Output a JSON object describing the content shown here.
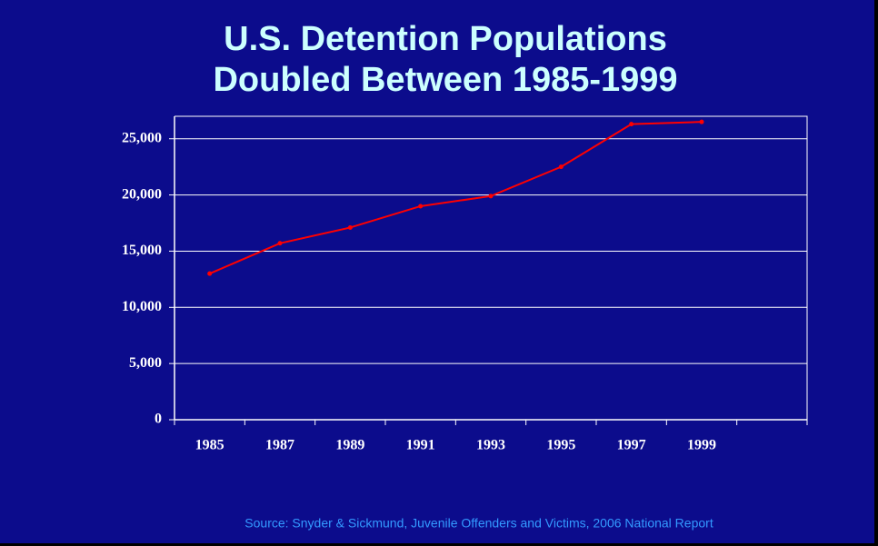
{
  "chart_data": {
    "type": "line",
    "title": [
      "U.S. Detention Populations",
      "Doubled Between 1985-1999"
    ],
    "source": "Source: Snyder & Sickmund, Juvenile Offenders and Victims, 2006 National Report",
    "categories": [
      "1985",
      "1987",
      "1989",
      "1991",
      "1993",
      "1995",
      "1997",
      "1999",
      null
    ],
    "series": [
      {
        "name": null,
        "color": "#ff0000",
        "values": [
          13000,
          15700,
          17100,
          19000,
          19900,
          22500,
          26300,
          26500,
          null
        ]
      }
    ],
    "ylim": [
      0,
      27000
    ],
    "yticks": [
      0,
      {
        "value": 5000,
        "label": "5,000"
      },
      {
        "value": 10000,
        "label": "10,000"
      },
      {
        "value": 15000,
        "label": "15,000"
      },
      {
        "value": 20000,
        "label": "20,000"
      },
      {
        "value": 25000,
        "label": "25,000"
      }
    ],
    "grid": true
  }
}
